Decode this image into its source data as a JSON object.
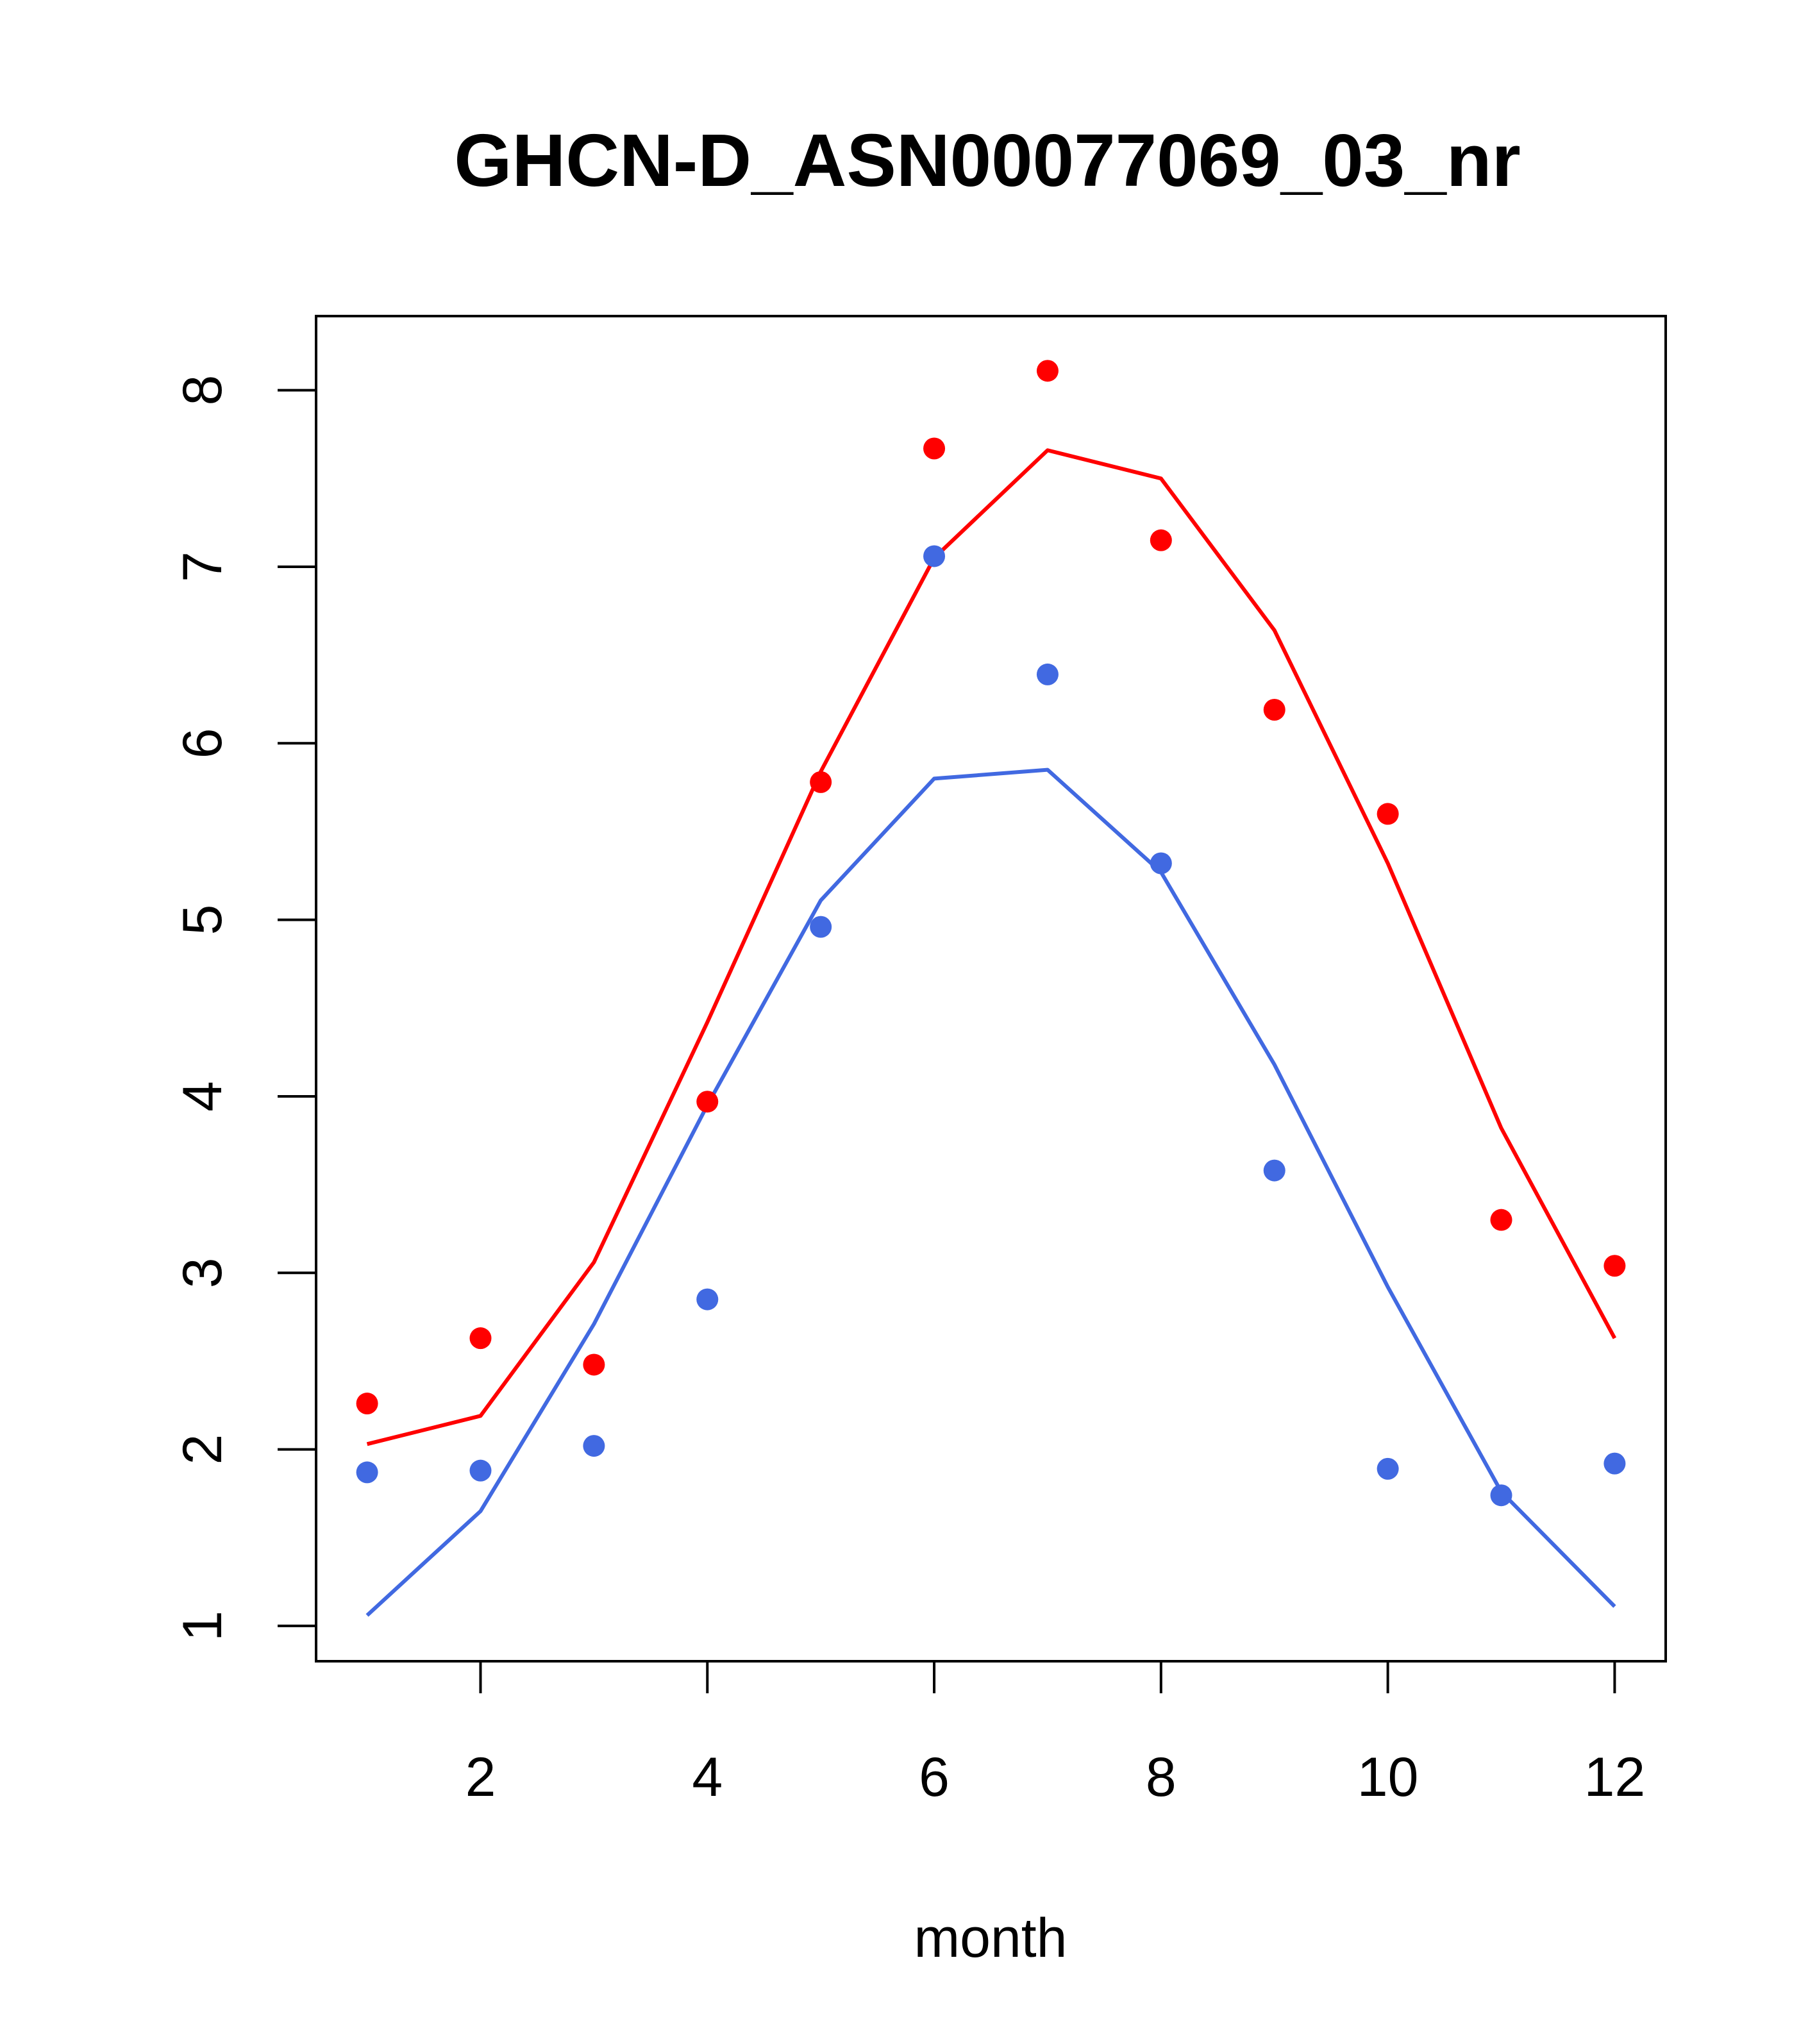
{
  "chart_data": {
    "type": "line",
    "title": "GHCN-D_ASN00077069_03_nr",
    "xlabel": "month",
    "ylabel": "",
    "xlim": [
      0.55,
      12.45
    ],
    "ylim": [
      0.8,
      8.42
    ],
    "xticks": [
      2,
      4,
      6,
      8,
      10,
      12
    ],
    "yticks": [
      1,
      2,
      3,
      4,
      5,
      6,
      7,
      8
    ],
    "grid": false,
    "legend": "none",
    "x": [
      1,
      2,
      3,
      4,
      5,
      6,
      7,
      8,
      9,
      10,
      11,
      12
    ],
    "series": [
      {
        "color": "#ff0000",
        "points": [
          2.26,
          2.63,
          2.48,
          3.97,
          5.78,
          7.67,
          8.11,
          7.15,
          6.19,
          5.6,
          3.3,
          3.04
        ],
        "line": [
          2.03,
          2.19,
          3.06,
          4.42,
          5.84,
          7.05,
          7.66,
          7.5,
          6.64,
          5.32,
          3.82,
          2.63
        ]
      },
      {
        "color": "#4169e1",
        "points": [
          1.87,
          1.88,
          2.02,
          2.85,
          4.96,
          7.06,
          6.39,
          5.32,
          3.58,
          1.89,
          1.74,
          1.92
        ],
        "line": [
          1.06,
          1.65,
          2.71,
          3.95,
          5.11,
          5.8,
          5.85,
          5.27,
          4.18,
          2.92,
          1.76,
          1.11
        ]
      }
    ]
  }
}
